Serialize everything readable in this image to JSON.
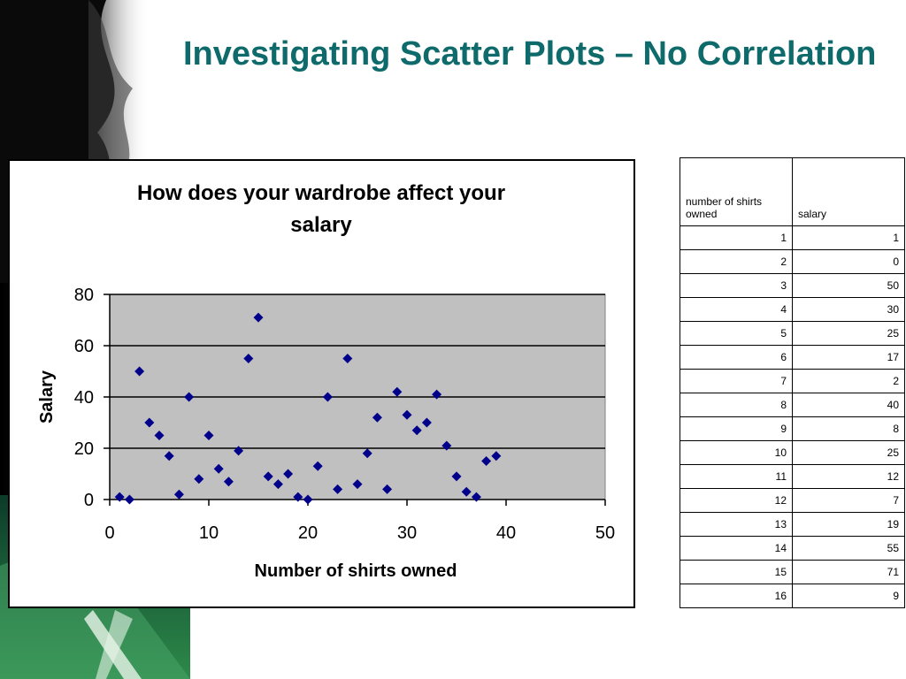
{
  "slide": {
    "title": "Investigating Scatter Plots – No Correlation"
  },
  "chart_data": {
    "type": "scatter",
    "title": "How does your wardrobe affect your salary",
    "xlabel": "Number of shirts owned",
    "ylabel": "Salary",
    "xlim": [
      0,
      50
    ],
    "ylim": [
      0,
      80
    ],
    "xticks": [
      0,
      10,
      20,
      30,
      40,
      50
    ],
    "yticks": [
      0,
      20,
      40,
      60,
      80
    ],
    "grid": "horizontal",
    "legend": "none",
    "marker": "diamond",
    "marker_color": "#00008b",
    "plot_background": "#c0c0c0",
    "points": [
      [
        1,
        1
      ],
      [
        2,
        0
      ],
      [
        3,
        50
      ],
      [
        4,
        30
      ],
      [
        5,
        25
      ],
      [
        6,
        17
      ],
      [
        7,
        2
      ],
      [
        8,
        40
      ],
      [
        9,
        8
      ],
      [
        10,
        25
      ],
      [
        11,
        12
      ],
      [
        12,
        7
      ],
      [
        13,
        19
      ],
      [
        14,
        55
      ],
      [
        15,
        71
      ],
      [
        16,
        9
      ],
      [
        17,
        6
      ],
      [
        18,
        10
      ],
      [
        19,
        1
      ],
      [
        20,
        0
      ],
      [
        21,
        13
      ],
      [
        22,
        40
      ],
      [
        23,
        4
      ],
      [
        24,
        55
      ],
      [
        25,
        6
      ],
      [
        26,
        18
      ],
      [
        27,
        32
      ],
      [
        28,
        4
      ],
      [
        29,
        42
      ],
      [
        30,
        33
      ],
      [
        31,
        27
      ],
      [
        32,
        30
      ],
      [
        33,
        41
      ],
      [
        34,
        21
      ],
      [
        35,
        9
      ],
      [
        36,
        3
      ],
      [
        37,
        1
      ],
      [
        38,
        15
      ],
      [
        39,
        17
      ]
    ]
  },
  "table": {
    "headers": [
      "number of shirts owned",
      "salary"
    ],
    "rows": [
      [
        "1",
        "1"
      ],
      [
        "2",
        "0"
      ],
      [
        "3",
        "50"
      ],
      [
        "4",
        "30"
      ],
      [
        "5",
        "25"
      ],
      [
        "6",
        "17"
      ],
      [
        "7",
        "2"
      ],
      [
        "8",
        "40"
      ],
      [
        "9",
        "8"
      ],
      [
        "10",
        "25"
      ],
      [
        "11",
        "12"
      ],
      [
        "12",
        "7"
      ],
      [
        "13",
        "19"
      ],
      [
        "14",
        "55"
      ],
      [
        "15",
        "71"
      ],
      [
        "16",
        "9"
      ]
    ]
  }
}
